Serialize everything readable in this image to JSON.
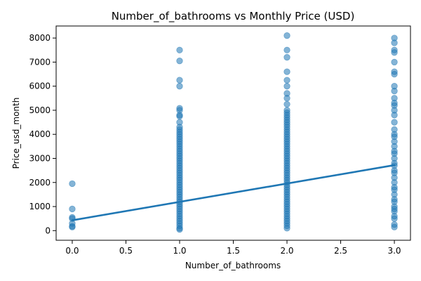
{
  "chart_data": {
    "type": "scatter",
    "title": "Number_of_bathrooms vs Monthly Price (USD)",
    "xlabel": "Number_of_bathrooms",
    "ylabel": "Price_usd_month",
    "xlim": [
      -0.15,
      3.15
    ],
    "ylim": [
      -400,
      8500
    ],
    "xticks": [
      0.0,
      0.5,
      1.0,
      1.5,
      2.0,
      2.5,
      3.0
    ],
    "xtick_labels": [
      "0.0",
      "0.5",
      "1.0",
      "1.5",
      "2.0",
      "2.5",
      "3.0"
    ],
    "yticks": [
      0,
      1000,
      2000,
      3000,
      4000,
      5000,
      6000,
      7000,
      8000
    ],
    "ytick_labels": [
      "0",
      "1000",
      "2000",
      "3000",
      "4000",
      "5000",
      "6000",
      "7000",
      "8000"
    ],
    "grid": false,
    "point_color": "#1f77b4",
    "point_opacity": 0.55,
    "line_color": "#1f77b4",
    "points": [
      {
        "x": 0,
        "y": 1950
      },
      {
        "x": 0,
        "y": 900
      },
      {
        "x": 0,
        "y": 550
      },
      {
        "x": 0,
        "y": 500
      },
      {
        "x": 0,
        "y": 300
      },
      {
        "x": 0,
        "y": 180
      },
      {
        "x": 0,
        "y": 150
      },
      {
        "x": 1,
        "y": 7500
      },
      {
        "x": 1,
        "y": 7050
      },
      {
        "x": 1,
        "y": 6250
      },
      {
        "x": 1,
        "y": 6000
      },
      {
        "x": 1,
        "y": 5080
      },
      {
        "x": 1,
        "y": 5000
      },
      {
        "x": 1,
        "y": 4800
      },
      {
        "x": 1,
        "y": 4750
      },
      {
        "x": 1,
        "y": 4500
      },
      {
        "x": 1,
        "y": 4300
      },
      {
        "x": 1,
        "y": 4200
      },
      {
        "x": 1,
        "y": 4100
      },
      {
        "x": 1,
        "y": 4000
      },
      {
        "x": 1,
        "y": 3900
      },
      {
        "x": 1,
        "y": 3800
      },
      {
        "x": 1,
        "y": 3700
      },
      {
        "x": 1,
        "y": 3600
      },
      {
        "x": 1,
        "y": 3500
      },
      {
        "x": 1,
        "y": 3400
      },
      {
        "x": 1,
        "y": 3300
      },
      {
        "x": 1,
        "y": 3200
      },
      {
        "x": 1,
        "y": 3100
      },
      {
        "x": 1,
        "y": 3000
      },
      {
        "x": 1,
        "y": 2900
      },
      {
        "x": 1,
        "y": 2800
      },
      {
        "x": 1,
        "y": 2700
      },
      {
        "x": 1,
        "y": 2600
      },
      {
        "x": 1,
        "y": 2500
      },
      {
        "x": 1,
        "y": 2400
      },
      {
        "x": 1,
        "y": 2300
      },
      {
        "x": 1,
        "y": 2200
      },
      {
        "x": 1,
        "y": 2100
      },
      {
        "x": 1,
        "y": 2000
      },
      {
        "x": 1,
        "y": 1900
      },
      {
        "x": 1,
        "y": 1800
      },
      {
        "x": 1,
        "y": 1700
      },
      {
        "x": 1,
        "y": 1600
      },
      {
        "x": 1,
        "y": 1500
      },
      {
        "x": 1,
        "y": 1400
      },
      {
        "x": 1,
        "y": 1300
      },
      {
        "x": 1,
        "y": 1200
      },
      {
        "x": 1,
        "y": 1100
      },
      {
        "x": 1,
        "y": 1000
      },
      {
        "x": 1,
        "y": 900
      },
      {
        "x": 1,
        "y": 800
      },
      {
        "x": 1,
        "y": 700
      },
      {
        "x": 1,
        "y": 600
      },
      {
        "x": 1,
        "y": 500
      },
      {
        "x": 1,
        "y": 400
      },
      {
        "x": 1,
        "y": 300
      },
      {
        "x": 1,
        "y": 200
      },
      {
        "x": 1,
        "y": 100
      },
      {
        "x": 1,
        "y": 50
      },
      {
        "x": 2,
        "y": 8100
      },
      {
        "x": 2,
        "y": 7500
      },
      {
        "x": 2,
        "y": 7200
      },
      {
        "x": 2,
        "y": 6600
      },
      {
        "x": 2,
        "y": 6250
      },
      {
        "x": 2,
        "y": 6000
      },
      {
        "x": 2,
        "y": 5700
      },
      {
        "x": 2,
        "y": 5500
      },
      {
        "x": 2,
        "y": 5250
      },
      {
        "x": 2,
        "y": 5000
      },
      {
        "x": 2,
        "y": 4900
      },
      {
        "x": 2,
        "y": 4800
      },
      {
        "x": 2,
        "y": 4700
      },
      {
        "x": 2,
        "y": 4600
      },
      {
        "x": 2,
        "y": 4500
      },
      {
        "x": 2,
        "y": 4400
      },
      {
        "x": 2,
        "y": 4300
      },
      {
        "x": 2,
        "y": 4200
      },
      {
        "x": 2,
        "y": 4100
      },
      {
        "x": 2,
        "y": 4000
      },
      {
        "x": 2,
        "y": 3900
      },
      {
        "x": 2,
        "y": 3800
      },
      {
        "x": 2,
        "y": 3700
      },
      {
        "x": 2,
        "y": 3600
      },
      {
        "x": 2,
        "y": 3500
      },
      {
        "x": 2,
        "y": 3400
      },
      {
        "x": 2,
        "y": 3300
      },
      {
        "x": 2,
        "y": 3200
      },
      {
        "x": 2,
        "y": 3100
      },
      {
        "x": 2,
        "y": 3000
      },
      {
        "x": 2,
        "y": 2900
      },
      {
        "x": 2,
        "y": 2800
      },
      {
        "x": 2,
        "y": 2700
      },
      {
        "x": 2,
        "y": 2600
      },
      {
        "x": 2,
        "y": 2500
      },
      {
        "x": 2,
        "y": 2400
      },
      {
        "x": 2,
        "y": 2300
      },
      {
        "x": 2,
        "y": 2200
      },
      {
        "x": 2,
        "y": 2100
      },
      {
        "x": 2,
        "y": 2000
      },
      {
        "x": 2,
        "y": 1900
      },
      {
        "x": 2,
        "y": 1800
      },
      {
        "x": 2,
        "y": 1700
      },
      {
        "x": 2,
        "y": 1600
      },
      {
        "x": 2,
        "y": 1500
      },
      {
        "x": 2,
        "y": 1400
      },
      {
        "x": 2,
        "y": 1300
      },
      {
        "x": 2,
        "y": 1200
      },
      {
        "x": 2,
        "y": 1100
      },
      {
        "x": 2,
        "y": 1000
      },
      {
        "x": 2,
        "y": 900
      },
      {
        "x": 2,
        "y": 800
      },
      {
        "x": 2,
        "y": 700
      },
      {
        "x": 2,
        "y": 600
      },
      {
        "x": 2,
        "y": 500
      },
      {
        "x": 2,
        "y": 400
      },
      {
        "x": 2,
        "y": 300
      },
      {
        "x": 2,
        "y": 200
      },
      {
        "x": 2,
        "y": 100
      },
      {
        "x": 3,
        "y": 8000
      },
      {
        "x": 3,
        "y": 7800
      },
      {
        "x": 3,
        "y": 7500
      },
      {
        "x": 3,
        "y": 7400
      },
      {
        "x": 3,
        "y": 7000
      },
      {
        "x": 3,
        "y": 6600
      },
      {
        "x": 3,
        "y": 6500
      },
      {
        "x": 3,
        "y": 6000
      },
      {
        "x": 3,
        "y": 5800
      },
      {
        "x": 3,
        "y": 5500
      },
      {
        "x": 3,
        "y": 5300
      },
      {
        "x": 3,
        "y": 5200
      },
      {
        "x": 3,
        "y": 5000
      },
      {
        "x": 3,
        "y": 4800
      },
      {
        "x": 3,
        "y": 4500
      },
      {
        "x": 3,
        "y": 4200
      },
      {
        "x": 3,
        "y": 4000
      },
      {
        "x": 3,
        "y": 3900
      },
      {
        "x": 3,
        "y": 3700
      },
      {
        "x": 3,
        "y": 3500
      },
      {
        "x": 3,
        "y": 3300
      },
      {
        "x": 3,
        "y": 3200
      },
      {
        "x": 3,
        "y": 3000
      },
      {
        "x": 3,
        "y": 2800
      },
      {
        "x": 3,
        "y": 2700
      },
      {
        "x": 3,
        "y": 2500
      },
      {
        "x": 3,
        "y": 2400
      },
      {
        "x": 3,
        "y": 2200
      },
      {
        "x": 3,
        "y": 2000
      },
      {
        "x": 3,
        "y": 1800
      },
      {
        "x": 3,
        "y": 1700
      },
      {
        "x": 3,
        "y": 1500
      },
      {
        "x": 3,
        "y": 1300
      },
      {
        "x": 3,
        "y": 1200
      },
      {
        "x": 3,
        "y": 1000
      },
      {
        "x": 3,
        "y": 900
      },
      {
        "x": 3,
        "y": 800
      },
      {
        "x": 3,
        "y": 600
      },
      {
        "x": 3,
        "y": 500
      },
      {
        "x": 3,
        "y": 250
      },
      {
        "x": 3,
        "y": 150
      }
    ],
    "regression_line": {
      "x": [
        0,
        3
      ],
      "y": [
        430,
        2720
      ]
    }
  }
}
